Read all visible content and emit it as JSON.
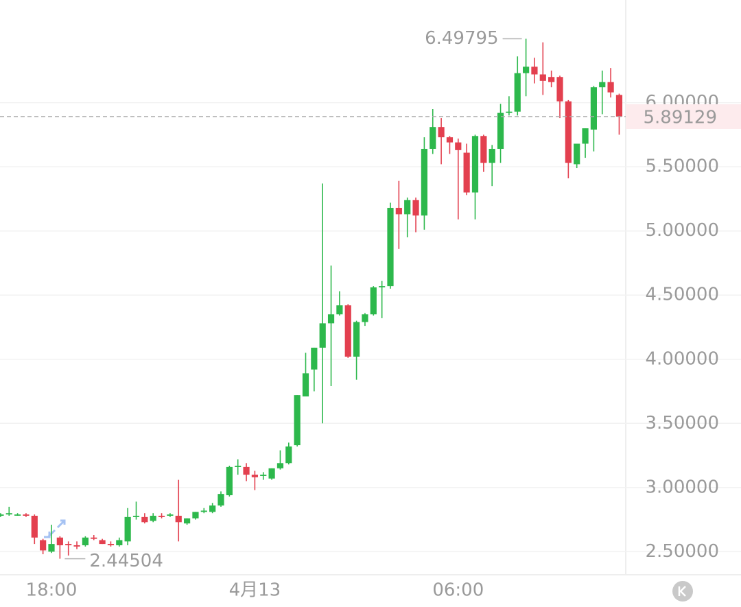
{
  "chart_data": {
    "type": "candlestick",
    "categories": [
      null,
      null,
      null,
      null,
      null,
      null,
      "18:00",
      null,
      null,
      null,
      null,
      null,
      null,
      null,
      null,
      null,
      null,
      null,
      null,
      null,
      null,
      null,
      null,
      null,
      null,
      null,
      null,
      null,
      null,
      null,
      "4月13",
      null,
      null,
      null,
      null,
      null,
      null,
      null,
      null,
      null,
      null,
      null,
      null,
      null,
      null,
      null,
      null,
      null,
      null,
      null,
      null,
      null,
      null,
      null,
      "06:00",
      null,
      null,
      null,
      null,
      null,
      null,
      null,
      null,
      null,
      null,
      null,
      null,
      null,
      null,
      null,
      null,
      null,
      null,
      null
    ],
    "open": [
      2.78,
      2.79,
      2.79,
      2.79,
      2.78,
      2.59,
      2.5,
      2.61,
      2.56,
      2.55,
      2.55,
      2.61,
      2.59,
      2.56,
      2.55,
      2.58,
      2.77,
      2.77,
      2.74,
      2.78,
      2.78,
      2.78,
      2.72,
      2.76,
      2.81,
      2.81,
      2.86,
      2.94,
      3.16,
      3.16,
      3.1,
      3.09,
      3.07,
      3.15,
      3.19,
      3.33,
      3.71,
      3.92,
      4.09,
      4.28,
      4.35,
      4.42,
      4.02,
      4.29,
      4.35,
      4.56,
      4.57,
      5.18,
      5.13,
      5.24,
      5.12,
      5.64,
      5.81,
      5.73,
      5.69,
      5.61,
      5.3,
      5.74,
      5.53,
      5.64,
      5.92,
      5.93,
      6.23,
      6.28,
      6.22,
      6.2,
      6.2,
      6.01,
      5.52,
      5.68,
      5.79,
      6.12,
      6.16,
      6.06
    ],
    "high": [
      2.8,
      2.85,
      2.8,
      2.8,
      2.79,
      2.6,
      2.71,
      2.62,
      2.58,
      2.58,
      2.62,
      2.63,
      2.6,
      2.58,
      2.61,
      2.84,
      2.89,
      2.8,
      2.8,
      2.8,
      2.8,
      3.06,
      2.76,
      2.81,
      2.84,
      2.88,
      2.97,
      3.17,
      3.22,
      3.19,
      3.13,
      3.12,
      3.15,
      3.29,
      3.35,
      3.72,
      4.05,
      4.09,
      5.37,
      4.73,
      4.53,
      4.43,
      4.3,
      4.36,
      4.57,
      4.61,
      5.22,
      5.39,
      5.26,
      5.26,
      5.73,
      5.95,
      5.88,
      5.74,
      5.72,
      5.68,
      5.75,
      5.75,
      5.67,
      5.99,
      6.05,
      6.36,
      6.49795,
      6.35,
      6.47,
      6.25,
      6.21,
      6.02,
      5.68,
      5.8,
      6.13,
      6.25,
      6.27,
      6.07
    ],
    "low": [
      2.77,
      2.78,
      2.78,
      2.77,
      2.56,
      2.48,
      2.49,
      2.44504,
      2.47,
      2.52,
      2.54,
      2.59,
      2.56,
      2.54,
      2.54,
      2.55,
      2.75,
      2.72,
      2.73,
      2.76,
      2.77,
      2.58,
      2.71,
      2.75,
      2.8,
      2.8,
      2.85,
      2.93,
      3.1,
      3.05,
      2.98,
      3.06,
      3.06,
      3.14,
      3.18,
      3.32,
      3.71,
      3.75,
      3.5,
      3.79,
      4.34,
      4.01,
      3.84,
      4.26,
      4.34,
      4.32,
      4.55,
      4.86,
      4.95,
      4.99,
      5.01,
      5.6,
      5.52,
      5.6,
      5.09,
      5.28,
      5.09,
      5.46,
      5.35,
      5.53,
      5.9,
      5.9,
      6.05,
      6.15,
      6.06,
      6.12,
      5.88,
      5.41,
      5.49,
      5.57,
      5.62,
      5.91,
      6.04,
      5.75
    ],
    "close": [
      2.79,
      2.8,
      2.79,
      2.78,
      2.61,
      2.51,
      2.56,
      2.55,
      2.55,
      2.54,
      2.61,
      2.6,
      2.56,
      2.55,
      2.59,
      2.77,
      2.78,
      2.73,
      2.78,
      2.77,
      2.79,
      2.73,
      2.76,
      2.81,
      2.82,
      2.86,
      2.95,
      3.16,
      3.17,
      3.1,
      3.08,
      3.1,
      3.15,
      3.19,
      3.32,
      3.72,
      3.89,
      4.09,
      4.28,
      4.35,
      4.42,
      4.02,
      4.29,
      4.35,
      4.56,
      4.57,
      5.18,
      5.13,
      5.24,
      5.12,
      5.64,
      5.81,
      5.73,
      5.69,
      5.63,
      5.3,
      5.74,
      5.53,
      5.64,
      5.92,
      5.93,
      6.23,
      6.28,
      6.22,
      6.17,
      6.16,
      6.01,
      5.53,
      5.68,
      5.8,
      6.12,
      6.16,
      6.08,
      5.89129
    ],
    "up_color": "#2db84c",
    "down_color": "#e3404f",
    "ylim": [
      2.32,
      6.8
    ],
    "yticks": [
      {
        "value": 2.5,
        "label": "2.50000"
      },
      {
        "value": 3,
        "label": "3.00000"
      },
      {
        "value": 3.5,
        "label": "3.50000"
      },
      {
        "value": 4,
        "label": "4.00000"
      },
      {
        "value": 4.5,
        "label": "4.50000"
      },
      {
        "value": 5,
        "label": "5.00000"
      },
      {
        "value": 5.5,
        "label": "5.50000"
      },
      {
        "value": 6,
        "label": "6.00000"
      }
    ],
    "grid": true
  }
}
